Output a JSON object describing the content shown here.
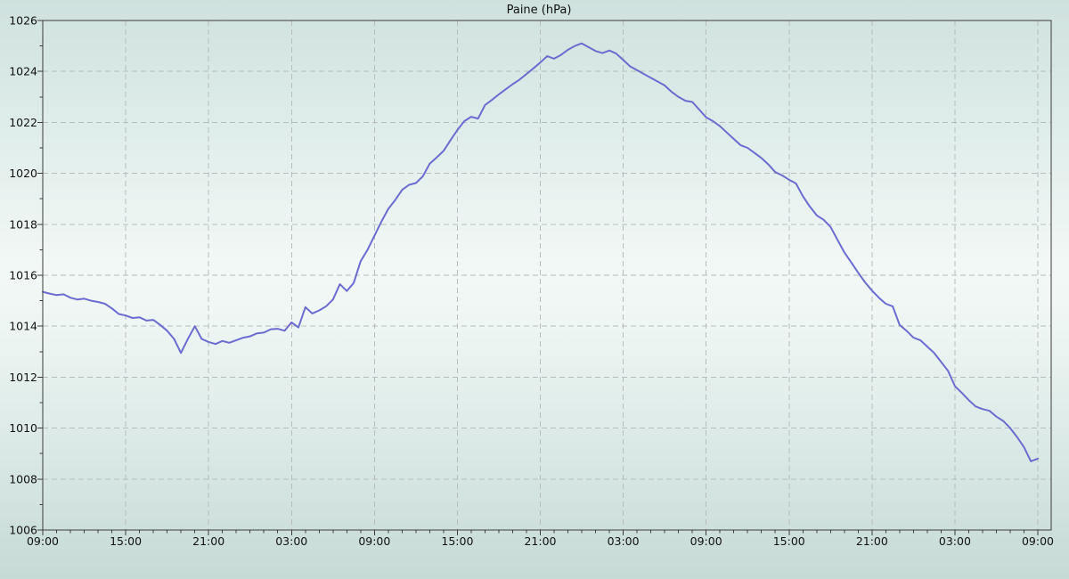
{
  "title": "Paine (hPa)",
  "colors": {
    "line": "#6c6cd0",
    "grid": "#b7bdbf",
    "axis": "#3c3c3c",
    "text": "#111111",
    "bg_top": "#cfe1de",
    "bg_mid": "#f2f8f6",
    "bg_bottom": "#c6dad6"
  },
  "chart_data": {
    "type": "line",
    "title": "Paine (hPa)",
    "xlabel": "",
    "ylabel": "",
    "legend": "none",
    "grid": "dashed at major ticks, both axes",
    "x_unit": "time, 72 hours total, labels every 6 h, minor ticks hourly",
    "x_tick_labels": [
      "09:00",
      "15:00",
      "21:00",
      "03:00",
      "09:00",
      "15:00",
      "21:00",
      "03:00",
      "09:00",
      "15:00",
      "21:00",
      "03:00",
      "09:00"
    ],
    "x_tick_hours": [
      0,
      6,
      12,
      18,
      24,
      30,
      36,
      42,
      48,
      54,
      60,
      66,
      72
    ],
    "x_minor_step_hours": 1,
    "xlim_hours": [
      0,
      73
    ],
    "ylim": [
      1006,
      1026
    ],
    "y_tick_step": 2,
    "y_minor_step": 1,
    "y_tick_labels": [
      "1006",
      "1008",
      "1010",
      "1012",
      "1014",
      "1016",
      "1018",
      "1020",
      "1022",
      "1024",
      "1026"
    ],
    "series": [
      {
        "name": "Paine",
        "color": "#6c6cd0",
        "sample_interval_hours": 0.5,
        "start_label": "09:00",
        "values": [
          1015.35,
          1015.28,
          1015.22,
          1015.25,
          1015.12,
          1015.05,
          1015.08,
          1015.0,
          1014.95,
          1014.88,
          1014.7,
          1014.48,
          1014.42,
          1014.32,
          1014.35,
          1014.22,
          1014.25,
          1014.05,
          1013.82,
          1013.5,
          1012.95,
          1013.5,
          1014.0,
          1013.5,
          1013.38,
          1013.3,
          1013.42,
          1013.35,
          1013.45,
          1013.55,
          1013.6,
          1013.72,
          1013.75,
          1013.88,
          1013.9,
          1013.82,
          1014.15,
          1013.95,
          1014.75,
          1014.5,
          1014.62,
          1014.78,
          1015.05,
          1015.65,
          1015.38,
          1015.7,
          1016.55,
          1017.0,
          1017.55,
          1018.1,
          1018.6,
          1018.95,
          1019.35,
          1019.55,
          1019.62,
          1019.88,
          1020.38,
          1020.62,
          1020.88,
          1021.3,
          1021.7,
          1022.05,
          1022.22,
          1022.15,
          1022.68,
          1022.88,
          1023.1,
          1023.3,
          1023.5,
          1023.68,
          1023.9,
          1024.12,
          1024.35,
          1024.6,
          1024.5,
          1024.65,
          1024.85,
          1025.0,
          1025.1,
          1024.95,
          1024.8,
          1024.72,
          1024.82,
          1024.7,
          1024.45,
          1024.2,
          1024.05,
          1023.9,
          1023.75,
          1023.6,
          1023.45,
          1023.2,
          1023.0,
          1022.85,
          1022.8,
          1022.5,
          1022.2,
          1022.05,
          1021.85,
          1021.6,
          1021.35,
          1021.1,
          1021.0,
          1020.8,
          1020.6,
          1020.35,
          1020.05,
          1019.92,
          1019.75,
          1019.6,
          1019.1,
          1018.7,
          1018.35,
          1018.18,
          1017.9,
          1017.4,
          1016.9,
          1016.5,
          1016.1,
          1015.72,
          1015.4,
          1015.12,
          1014.88,
          1014.78,
          1014.05,
          1013.82,
          1013.55,
          1013.45,
          1013.2,
          1012.95,
          1012.6,
          1012.25,
          1011.65,
          1011.38,
          1011.1,
          1010.85,
          1010.75,
          1010.68,
          1010.45,
          1010.28,
          1010.0,
          1009.65,
          1009.25,
          1008.7,
          1008.8
        ]
      }
    ]
  }
}
